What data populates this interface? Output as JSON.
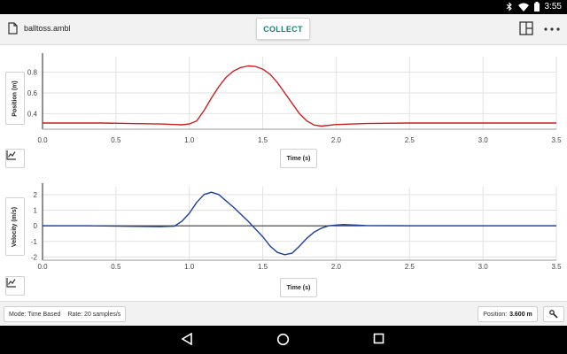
{
  "status_bar": {
    "time": "3:55",
    "icons": [
      "bluetooth-icon",
      "wifi-icon",
      "battery-icon"
    ]
  },
  "header": {
    "file_name": "balltoss.ambl",
    "collect_label": "COLLECT",
    "icons": [
      "file-icon",
      "layout-icon",
      "more-icon"
    ]
  },
  "graphs": [
    {
      "ylabel": "Position (m)",
      "xlabel": "Time (s)",
      "y_ticks": [
        "0.8",
        "0.6",
        "0.4"
      ],
      "x_ticks": [
        "0.0",
        "0.5",
        "1.0",
        "1.5",
        "2.0",
        "2.5",
        "3.0",
        "3.5"
      ],
      "color": "#cc1f1f"
    },
    {
      "ylabel": "Velocity (m/s)",
      "xlabel": "Time (s)",
      "y_ticks": [
        "2",
        "1",
        "0",
        "-1",
        "-2"
      ],
      "x_ticks": [
        "0.0",
        "0.5",
        "1.0",
        "1.5",
        "2.0",
        "2.5",
        "3.0",
        "3.5"
      ],
      "color": "#1c3fa0"
    }
  ],
  "chart_data": [
    {
      "type": "line",
      "ylabel": "Position (m)",
      "xlabel": "Time (s)",
      "xlim": [
        0,
        3.5
      ],
      "ylim": [
        0.25,
        0.95
      ],
      "grid": true,
      "series": [
        {
          "x": [
            0,
            0.2,
            0.4,
            0.6,
            0.8,
            0.9,
            0.95,
            1.0,
            1.05,
            1.1,
            1.15,
            1.2,
            1.25,
            1.3,
            1.35,
            1.4,
            1.45,
            1.5,
            1.55,
            1.6,
            1.65,
            1.7,
            1.75,
            1.8,
            1.85,
            1.9,
            2.0,
            2.2,
            2.5,
            2.8,
            3.0,
            3.3,
            3.5
          ],
          "y": [
            0.31,
            0.31,
            0.31,
            0.305,
            0.3,
            0.295,
            0.293,
            0.3,
            0.33,
            0.43,
            0.55,
            0.66,
            0.75,
            0.81,
            0.845,
            0.86,
            0.855,
            0.83,
            0.78,
            0.7,
            0.6,
            0.5,
            0.4,
            0.33,
            0.29,
            0.28,
            0.295,
            0.305,
            0.31,
            0.31,
            0.31,
            0.31,
            0.31
          ]
        }
      ]
    },
    {
      "type": "line",
      "ylabel": "Velocity (m/s)",
      "xlabel": "Time (s)",
      "xlim": [
        0,
        3.5
      ],
      "ylim": [
        -2.2,
        2.5
      ],
      "grid": true,
      "series": [
        {
          "x": [
            0,
            0.3,
            0.6,
            0.8,
            0.9,
            0.95,
            1.0,
            1.05,
            1.1,
            1.15,
            1.2,
            1.3,
            1.4,
            1.5,
            1.55,
            1.6,
            1.65,
            1.7,
            1.75,
            1.8,
            1.85,
            1.9,
            1.95,
            2.0,
            2.05,
            2.1,
            2.2,
            2.5,
            3.0,
            3.5
          ],
          "y": [
            0,
            0,
            -0.03,
            -0.05,
            -0.02,
            0.3,
            0.8,
            1.5,
            2.0,
            2.15,
            2.0,
            1.2,
            0.3,
            -0.7,
            -1.3,
            -1.7,
            -1.85,
            -1.75,
            -1.3,
            -0.8,
            -0.4,
            -0.15,
            0.0,
            0.05,
            0.08,
            0.06,
            0.02,
            0,
            0,
            0
          ]
        }
      ]
    }
  ],
  "info_bar": {
    "mode": "Mode: Time Based",
    "rate": "Rate: 20 samples/s",
    "position_label": "Position:",
    "position_value": "3.600 m"
  }
}
